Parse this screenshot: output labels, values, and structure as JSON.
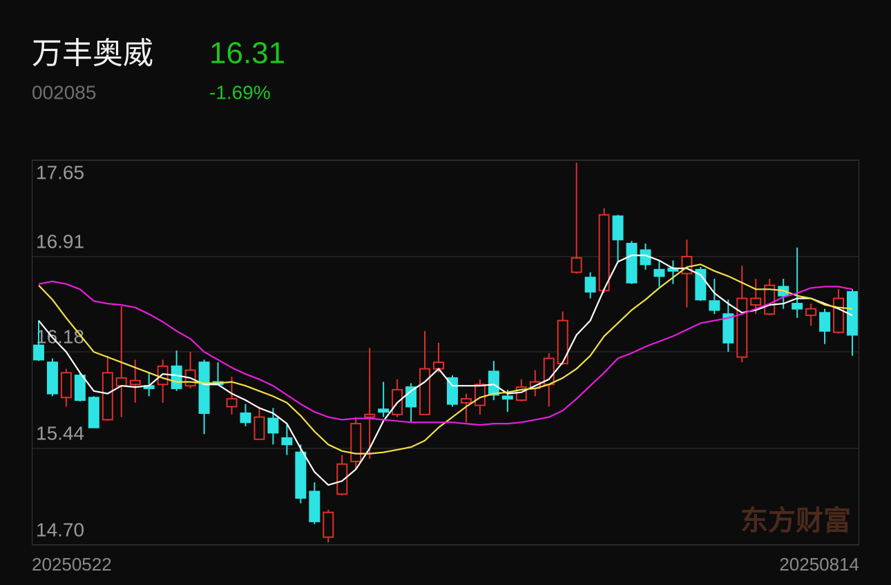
{
  "header": {
    "name": "万丰奥威",
    "code": "002085",
    "price": "16.31",
    "change": "-1.69%"
  },
  "chart_data": {
    "type": "candlestick",
    "watermark": "东方财富",
    "categories": [
      "20250522",
      null,
      null,
      null,
      null,
      null,
      null,
      null,
      null,
      null,
      null,
      null,
      null,
      null,
      null,
      null,
      null,
      null,
      null,
      null,
      null,
      null,
      null,
      null,
      null,
      null,
      null,
      null,
      null,
      null,
      null,
      null,
      null,
      null,
      null,
      null,
      null,
      null,
      null,
      null,
      null,
      null,
      null,
      null,
      null,
      null,
      null,
      null,
      null,
      null,
      null,
      null,
      null,
      null,
      null,
      null,
      null,
      null,
      null,
      "20250814"
    ],
    "open": [
      16.23,
      16.1,
      15.83,
      16.0,
      15.83,
      15.66,
      15.92,
      15.93,
      15.92,
      15.93,
      16.07,
      15.92,
      16.1,
      15.95,
      15.76,
      15.71,
      15.51,
      15.67,
      15.52,
      15.41,
      15.11,
      14.76,
      15.09,
      15.34,
      15.68,
      15.74,
      15.7,
      15.91,
      15.7,
      16.05,
      15.98,
      15.79,
      15.77,
      16.03,
      15.84,
      15.81,
      15.9,
      15.93,
      16.09,
      16.79,
      16.75,
      16.65,
      17.22,
      17.01,
      16.96,
      16.81,
      16.82,
      16.78,
      16.81,
      16.57,
      16.47,
      16.14,
      16.54,
      16.47,
      16.68,
      16.55,
      16.46,
      16.48,
      16.33,
      16.64
    ],
    "high": [
      16.42,
      16.13,
      16.05,
      16.02,
      15.84,
      16.15,
      16.53,
      16.12,
      16.02,
      16.12,
      16.19,
      16.18,
      16.12,
      16.1,
      15.99,
      15.78,
      15.76,
      15.75,
      15.63,
      15.47,
      15.18,
      14.97,
      15.39,
      15.68,
      16.21,
      15.95,
      15.97,
      15.94,
      16.34,
      16.25,
      16.0,
      15.86,
      15.97,
      16.11,
      15.89,
      15.97,
      16.04,
      16.17,
      16.49,
      17.63,
      16.79,
      17.28,
      17.23,
      17.03,
      17.01,
      16.88,
      16.88,
      17.04,
      16.83,
      16.74,
      16.58,
      16.84,
      16.74,
      16.74,
      16.74,
      16.98,
      16.55,
      16.51,
      16.66,
      16.66
    ],
    "low": [
      16.11,
      15.84,
      15.76,
      15.8,
      15.6,
      15.65,
      15.68,
      15.79,
      15.84,
      15.79,
      15.88,
      15.9,
      15.55,
      15.93,
      15.7,
      15.61,
      15.51,
      15.47,
      15.39,
      15.02,
      14.86,
      14.72,
      15.08,
      15.28,
      15.36,
      15.68,
      15.68,
      15.64,
      15.7,
      16.02,
      15.76,
      15.64,
      15.7,
      15.81,
      15.72,
      15.8,
      15.84,
      15.76,
      16.08,
      16.78,
      16.59,
      16.63,
      16.87,
      16.7,
      16.81,
      16.68,
      16.7,
      16.52,
      16.57,
      16.47,
      16.18,
      16.1,
      16.47,
      16.46,
      16.51,
      16.44,
      16.38,
      16.24,
      16.32,
      16.15
    ],
    "close": [
      16.12,
      15.86,
      16.02,
      15.81,
      15.6,
      16.02,
      15.98,
      15.96,
      15.9,
      16.07,
      15.9,
      16.04,
      15.71,
      15.93,
      15.82,
      15.64,
      15.68,
      15.56,
      15.47,
      15.06,
      14.88,
      14.95,
      15.32,
      15.63,
      15.7,
      15.72,
      15.89,
      15.76,
      16.05,
      16.1,
      15.78,
      15.82,
      15.93,
      15.85,
      15.82,
      15.91,
      15.95,
      16.13,
      16.42,
      16.9,
      16.64,
      17.23,
      17.04,
      16.71,
      16.85,
      16.76,
      16.8,
      16.91,
      16.58,
      16.5,
      16.25,
      16.59,
      16.59,
      16.69,
      16.61,
      16.51,
      16.51,
      16.34,
      16.59,
      16.31
    ],
    "up_color": "#e0302a",
    "down_color": "#2ee3e3",
    "lines": [
      {
        "color": "#ffffff",
        "values": [
          16.42,
          16.29,
          16.18,
          16.02,
          15.88,
          15.86,
          15.92,
          15.91,
          15.92,
          16.01,
          16.0,
          15.98,
          15.93,
          15.93,
          15.86,
          15.81,
          15.75,
          15.71,
          15.63,
          15.44,
          15.26,
          15.16,
          15.19,
          15.28,
          15.44,
          15.65,
          15.79,
          15.88,
          15.95,
          16.05,
          15.92,
          15.92,
          15.92,
          15.93,
          15.86,
          15.87,
          15.92,
          15.97,
          16.1,
          16.31,
          16.42,
          16.66,
          16.87,
          16.92,
          16.92,
          16.88,
          16.82,
          16.82,
          16.77,
          16.63,
          16.55,
          16.48,
          16.5,
          16.54,
          16.55,
          16.59,
          16.59,
          16.55,
          16.51,
          16.46
        ]
      },
      {
        "color": "#f2e14a",
        "values": [
          16.69,
          16.58,
          16.44,
          16.31,
          16.18,
          16.14,
          16.1,
          16.06,
          16.02,
          15.98,
          15.95,
          15.95,
          15.94,
          15.94,
          15.95,
          15.92,
          15.88,
          15.84,
          15.79,
          15.69,
          15.57,
          15.47,
          15.42,
          15.4,
          15.4,
          15.41,
          15.43,
          15.45,
          15.5,
          15.6,
          15.68,
          15.76,
          15.83,
          15.86,
          15.87,
          15.89,
          15.9,
          15.93,
          15.98,
          16.05,
          16.15,
          16.3,
          16.4,
          16.5,
          16.58,
          16.67,
          16.75,
          16.83,
          16.85,
          16.8,
          16.76,
          16.71,
          16.66,
          16.66,
          16.65,
          16.61,
          16.59,
          16.54,
          16.52,
          16.51
        ]
      },
      {
        "color": "#e81ee0",
        "values": [
          16.7,
          16.72,
          16.7,
          16.66,
          16.57,
          16.55,
          16.54,
          16.52,
          16.47,
          16.41,
          16.34,
          16.28,
          16.18,
          16.12,
          16.06,
          16.01,
          15.97,
          15.92,
          15.85,
          15.78,
          15.72,
          15.68,
          15.66,
          15.67,
          15.67,
          15.66,
          15.65,
          15.64,
          15.64,
          15.64,
          15.64,
          15.63,
          15.62,
          15.63,
          15.63,
          15.64,
          15.66,
          15.68,
          15.73,
          15.82,
          15.92,
          16.02,
          16.13,
          16.17,
          16.22,
          16.26,
          16.3,
          16.35,
          16.4,
          16.42,
          16.44,
          16.47,
          16.51,
          16.55,
          16.6,
          16.63,
          16.67,
          16.68,
          16.68,
          16.66
        ]
      }
    ],
    "ylim": [
      14.7,
      17.65
    ],
    "yticks": [
      17.65,
      16.91,
      16.18,
      15.44,
      {
        "value": 14.7,
        "label": "14.70"
      }
    ],
    "grid": true
  }
}
